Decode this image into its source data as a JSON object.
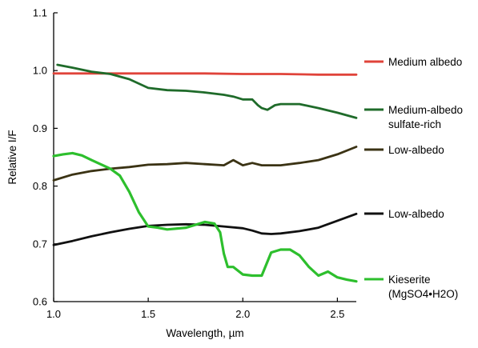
{
  "chart_data": {
    "type": "line",
    "xlabel": "Wavelength, µm",
    "ylabel": "Relative I/F",
    "xlim": [
      1.0,
      2.6
    ],
    "ylim": [
      0.6,
      1.1
    ],
    "xticks": [
      "1.0",
      "1.5",
      "2.0",
      "2.5"
    ],
    "yticks": [
      "0.6",
      "0.7",
      "0.8",
      "0.9",
      "1.0",
      "1.1"
    ],
    "grid": false,
    "legend_position": "right",
    "series": [
      {
        "name": "Medium albedo",
        "color": "#e0433a",
        "x": [
          1.0,
          1.2,
          1.4,
          1.6,
          1.8,
          2.0,
          2.2,
          2.4,
          2.6
        ],
        "y": [
          0.995,
          0.995,
          0.995,
          0.995,
          0.995,
          0.994,
          0.994,
          0.993,
          0.993
        ]
      },
      {
        "name": "Medium-albedo sulfate-rich",
        "color": "#1f6b2a",
        "x": [
          1.02,
          1.1,
          1.2,
          1.3,
          1.4,
          1.5,
          1.6,
          1.7,
          1.8,
          1.9,
          1.95,
          2.0,
          2.05,
          2.08,
          2.1,
          2.13,
          2.17,
          2.2,
          2.3,
          2.4,
          2.5,
          2.6
        ],
        "y": [
          1.01,
          1.005,
          0.998,
          0.994,
          0.985,
          0.97,
          0.966,
          0.965,
          0.962,
          0.958,
          0.955,
          0.95,
          0.95,
          0.94,
          0.935,
          0.932,
          0.94,
          0.942,
          0.942,
          0.935,
          0.927,
          0.918
        ]
      },
      {
        "name": "Low-albedo",
        "color": "#3b3314",
        "x": [
          1.0,
          1.1,
          1.2,
          1.3,
          1.4,
          1.5,
          1.6,
          1.7,
          1.8,
          1.9,
          1.95,
          2.0,
          2.05,
          2.1,
          2.2,
          2.3,
          2.4,
          2.5,
          2.6
        ],
        "y": [
          0.81,
          0.82,
          0.826,
          0.83,
          0.833,
          0.837,
          0.838,
          0.84,
          0.838,
          0.836,
          0.845,
          0.836,
          0.84,
          0.836,
          0.836,
          0.84,
          0.845,
          0.855,
          0.868
        ]
      },
      {
        "name": "Low-albedo",
        "color": "#111111",
        "x": [
          1.0,
          1.1,
          1.2,
          1.3,
          1.4,
          1.5,
          1.6,
          1.7,
          1.8,
          1.9,
          2.0,
          2.05,
          2.1,
          2.15,
          2.2,
          2.3,
          2.4,
          2.5,
          2.6
        ],
        "y": [
          0.698,
          0.705,
          0.713,
          0.72,
          0.726,
          0.731,
          0.733,
          0.734,
          0.733,
          0.73,
          0.727,
          0.723,
          0.718,
          0.717,
          0.718,
          0.722,
          0.728,
          0.74,
          0.752
        ]
      },
      {
        "name": "Kieserite (MgSO4•H2O)",
        "color": "#2dbf2d",
        "x": [
          1.0,
          1.05,
          1.1,
          1.15,
          1.2,
          1.3,
          1.35,
          1.4,
          1.45,
          1.5,
          1.55,
          1.6,
          1.7,
          1.8,
          1.85,
          1.88,
          1.9,
          1.92,
          1.95,
          2.0,
          2.05,
          2.1,
          2.15,
          2.2,
          2.25,
          2.3,
          2.35,
          2.4,
          2.45,
          2.5,
          2.55,
          2.6
        ],
        "y": [
          0.852,
          0.855,
          0.857,
          0.853,
          0.845,
          0.83,
          0.818,
          0.79,
          0.755,
          0.73,
          0.728,
          0.725,
          0.728,
          0.738,
          0.735,
          0.72,
          0.683,
          0.66,
          0.66,
          0.647,
          0.645,
          0.645,
          0.685,
          0.69,
          0.69,
          0.68,
          0.66,
          0.645,
          0.652,
          0.642,
          0.638,
          0.635
        ]
      }
    ],
    "legend": [
      {
        "label_lines": [
          "Medium albedo"
        ],
        "color": "#e0433a"
      },
      {
        "label_lines": [
          "Medium-albedo",
          "sulfate-rich"
        ],
        "color": "#1f6b2a"
      },
      {
        "label_lines": [
          "Low-albedo"
        ],
        "color": "#3b3314"
      },
      {
        "label_lines": [
          "Low-albedo"
        ],
        "color": "#111111"
      },
      {
        "label_lines": [
          "Kieserite",
          "(MgSO4•H2O)"
        ],
        "color": "#2dbf2d"
      }
    ]
  }
}
